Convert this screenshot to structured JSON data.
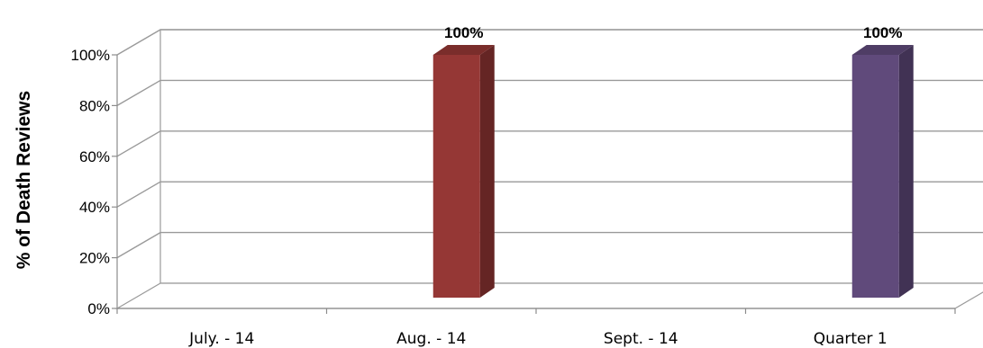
{
  "chart_data": {
    "type": "bar",
    "style": "3d-column",
    "categories": [
      "July. - 14",
      "Aug. - 14",
      "Sept. - 14",
      "Quarter 1"
    ],
    "values": [
      null,
      100,
      null,
      100
    ],
    "data_labels": [
      "",
      "100%",
      "",
      "100%"
    ],
    "colors": [
      "#953735",
      "#953735",
      "#604a7b",
      "#604a7b"
    ],
    "ylabel": "% of Death Reviews",
    "xlabel": "",
    "ylim": [
      0,
      100
    ],
    "yticks": [
      0,
      20,
      40,
      60,
      80,
      100
    ],
    "ytick_labels": [
      "0%",
      "20%",
      "40%",
      "60%",
      "80%",
      "100%"
    ],
    "grid": true,
    "legend": "none"
  }
}
